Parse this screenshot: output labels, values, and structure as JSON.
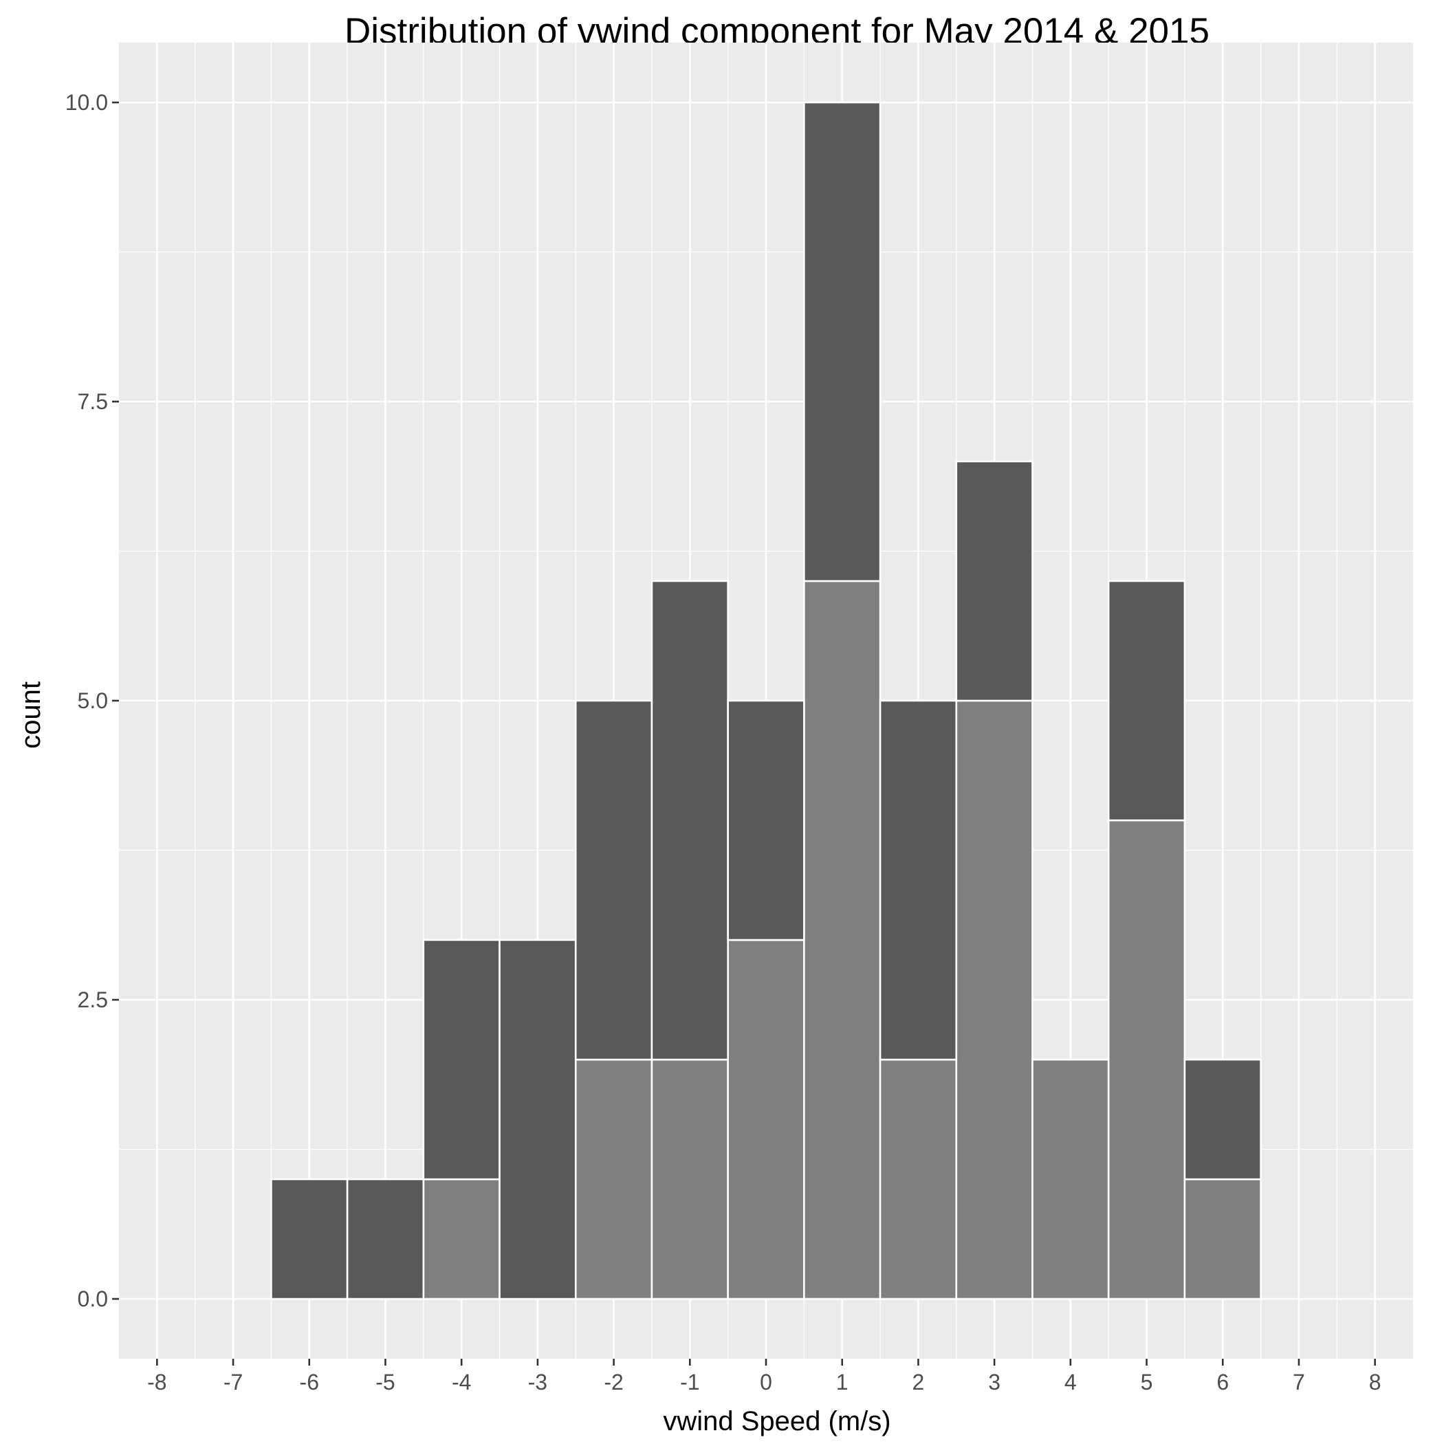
{
  "chart_data": {
    "type": "bar",
    "title": "Distribution of vwind component for May 2014 & 2015",
    "xlabel": "vwind Speed (m/s)",
    "ylabel": "count",
    "xlim": [
      -8.5,
      8.5
    ],
    "ylim": [
      -0.5,
      10.5
    ],
    "x_ticks": [
      "-8",
      "-7",
      "-6",
      "-5",
      "-4",
      "-3",
      "-2",
      "-1",
      "0",
      "1",
      "2",
      "3",
      "4",
      "5",
      "6",
      "7",
      "8"
    ],
    "y_ticks": [
      "0.0",
      "2.5",
      "5.0",
      "7.5",
      "10.0"
    ],
    "categories": [
      -6,
      -5,
      -4,
      -3,
      -2,
      -1,
      0,
      1,
      2,
      3,
      4,
      5,
      6
    ],
    "stacked": true,
    "grid": true,
    "legend": "none",
    "series": [
      {
        "color": "#7f7f7f",
        "values": [
          0,
          0,
          1,
          0,
          2,
          2,
          3,
          6,
          2,
          5,
          2,
          4,
          1
        ]
      },
      {
        "color": "#595959",
        "values": [
          1,
          1,
          2,
          3,
          3,
          4,
          2,
          4,
          3,
          2,
          0,
          2,
          1
        ]
      }
    ],
    "panel_color": "#ebebeb",
    "grid_color": "#ffffff"
  }
}
